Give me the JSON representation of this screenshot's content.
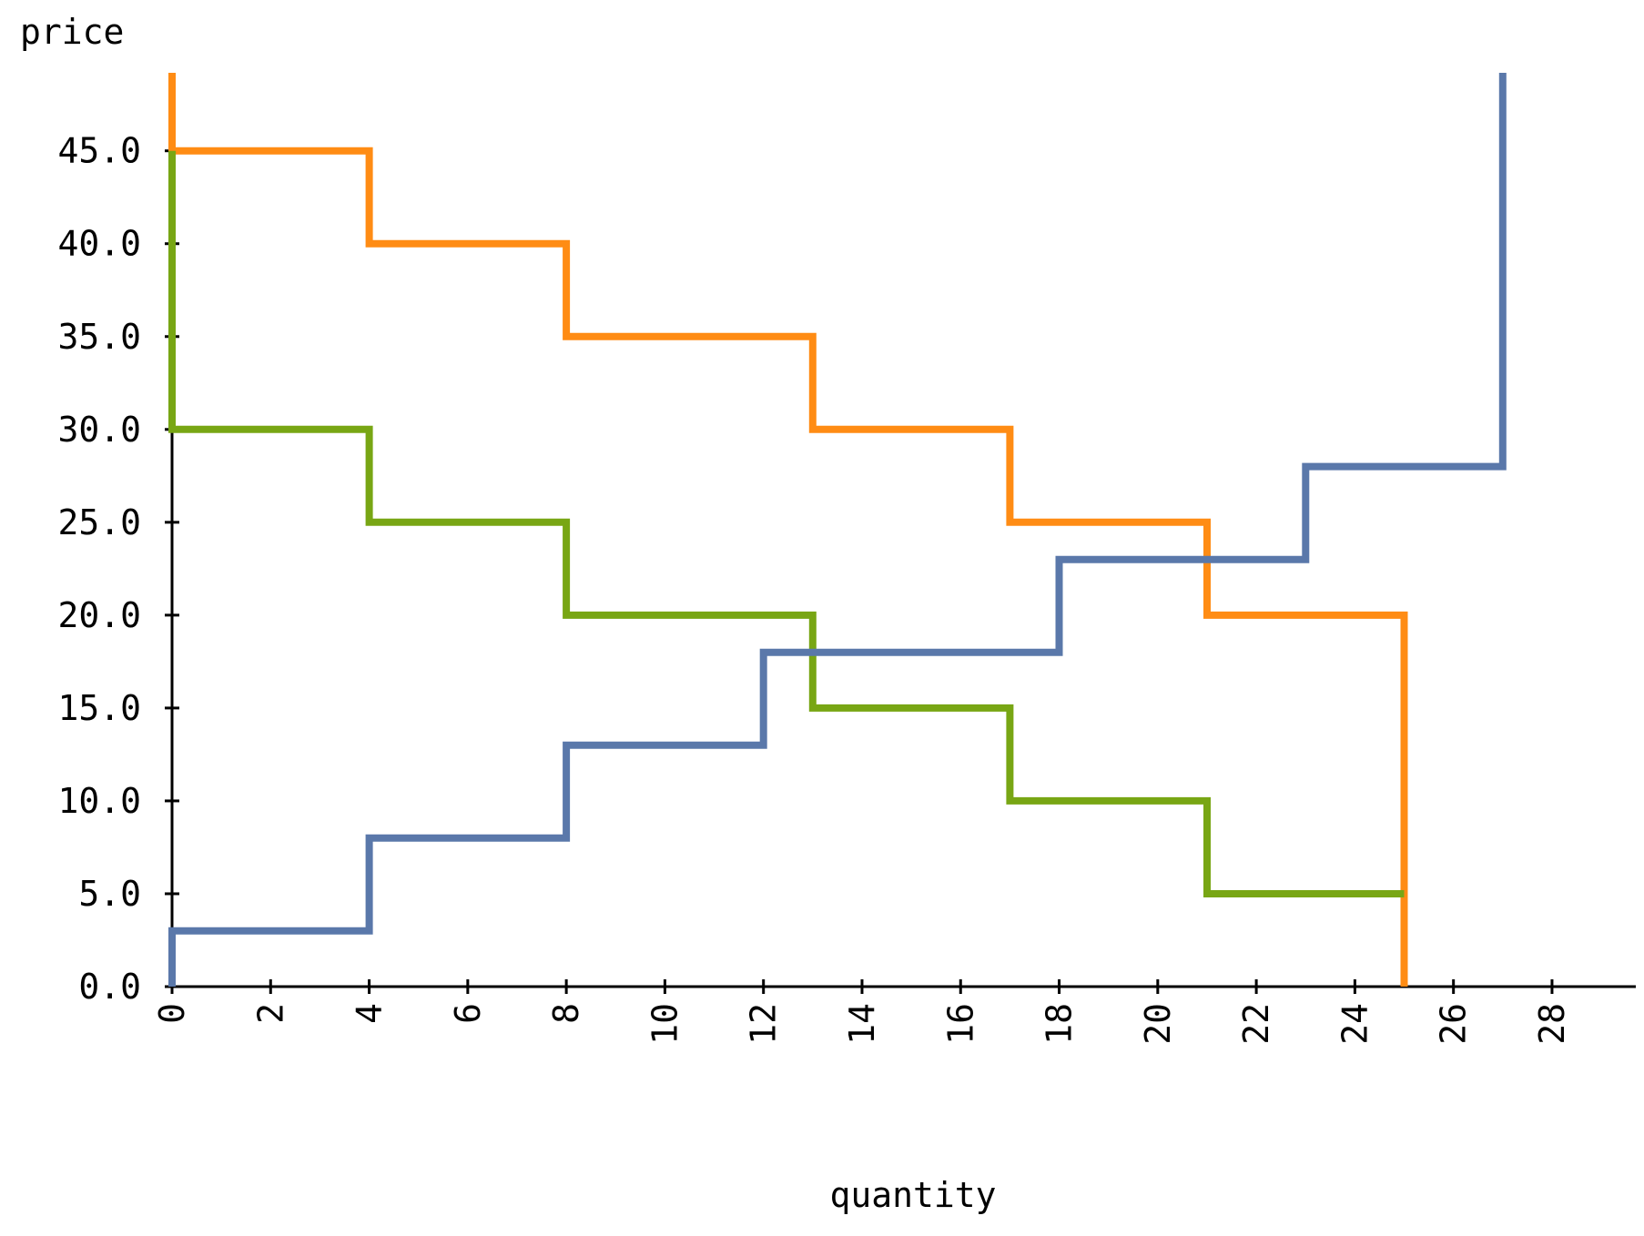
{
  "chart_data": {
    "type": "line",
    "step": true,
    "xlabel": "quantity",
    "ylabel": "price",
    "xlim": [
      0,
      29.7
    ],
    "ylim": [
      0,
      49.2
    ],
    "x_ticks": [
      0,
      2,
      4,
      6,
      8,
      10,
      12,
      14,
      16,
      18,
      20,
      22,
      24,
      26,
      28
    ],
    "x_tick_labels": [
      "0",
      "2",
      "4",
      "6",
      "8",
      "10",
      "12",
      "14",
      "16",
      "18",
      "20",
      "22",
      "24",
      "26",
      "28"
    ],
    "y_ticks": [
      0,
      5,
      10,
      15,
      20,
      25,
      30,
      35,
      40,
      45
    ],
    "y_tick_labels": [
      "0.0",
      "5.0",
      "10.0",
      "15.0",
      "20.0",
      "25.0",
      "30.0",
      "35.0",
      "40.0",
      "45.0"
    ],
    "grid": false,
    "legend": "none",
    "series": [
      {
        "color": "#ff8c14",
        "points": [
          [
            0,
            49.2
          ],
          [
            0,
            45
          ],
          [
            4,
            45
          ],
          [
            4,
            40
          ],
          [
            8,
            40
          ],
          [
            8,
            35
          ],
          [
            13,
            35
          ],
          [
            13,
            30
          ],
          [
            17,
            30
          ],
          [
            17,
            25
          ],
          [
            21,
            25
          ],
          [
            21,
            20
          ],
          [
            25,
            20
          ],
          [
            25,
            0
          ]
        ]
      },
      {
        "color": "#78a614",
        "points": [
          [
            0,
            45
          ],
          [
            0,
            30
          ],
          [
            4,
            30
          ],
          [
            4,
            25
          ],
          [
            8,
            25
          ],
          [
            8,
            20
          ],
          [
            13,
            20
          ],
          [
            13,
            15
          ],
          [
            17,
            15
          ],
          [
            17,
            10
          ],
          [
            21,
            10
          ],
          [
            21,
            5
          ],
          [
            25,
            5
          ]
        ]
      },
      {
        "color": "#5a78aa",
        "points": [
          [
            0,
            0
          ],
          [
            0,
            3
          ],
          [
            4,
            3
          ],
          [
            4,
            8
          ],
          [
            8,
            8
          ],
          [
            8,
            13
          ],
          [
            12,
            13
          ],
          [
            12,
            18
          ],
          [
            18,
            18
          ],
          [
            18,
            23
          ],
          [
            23,
            23
          ],
          [
            23,
            28
          ],
          [
            27,
            28
          ],
          [
            27,
            49.2
          ]
        ]
      }
    ]
  }
}
